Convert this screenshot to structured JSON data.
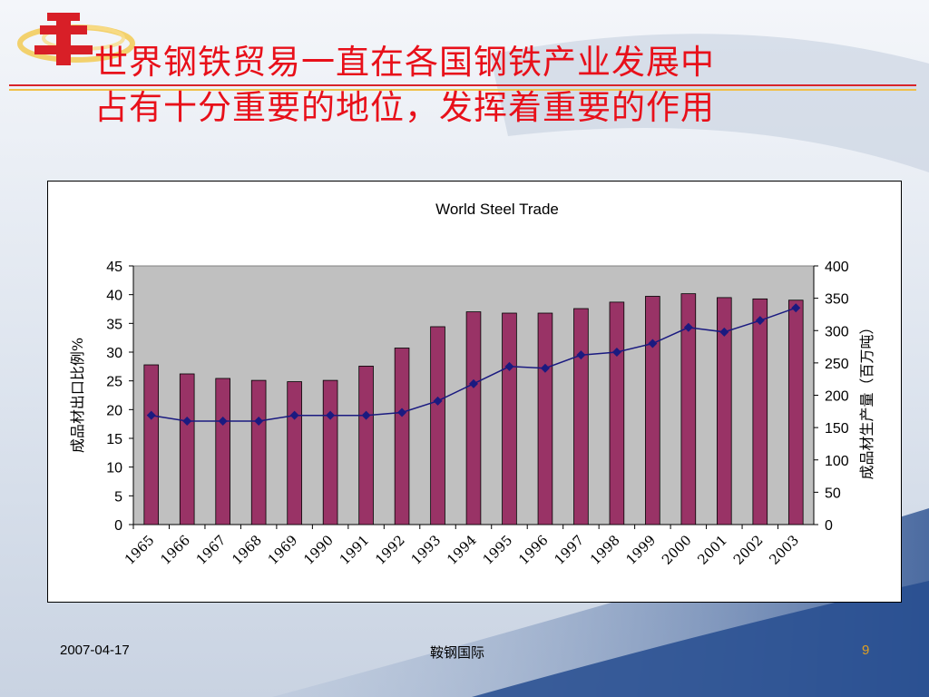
{
  "slide": {
    "title_line1": "世界钢铁贸易一直在各国钢铁产业发展中",
    "title_line2": "占有十分重要的地位，发挥着重要的作用"
  },
  "footer": {
    "date": "2007-04-17",
    "company": "鞍钢国际",
    "page": "9"
  },
  "colors": {
    "title": "#e8101a",
    "bar": "#993366",
    "line": "#1a1a80",
    "plot_bg": "#c0c0c0",
    "page_number": "#e0a020"
  },
  "logo": {
    "icon": "steel-logo-icon"
  },
  "chart_data": {
    "type": "bar",
    "title": "World Steel Trade",
    "categories": [
      "1965",
      "1966",
      "1967",
      "1968",
      "1969",
      "1990",
      "1991",
      "1992",
      "1993",
      "1994",
      "1995",
      "1996",
      "1997",
      "1998",
      "1999",
      "2000",
      "2001",
      "2002",
      "2003"
    ],
    "series": [
      {
        "type": "bar",
        "axis": "right",
        "values": [
          247,
          233,
          226,
          223,
          221,
          223,
          245,
          273,
          306,
          329,
          327,
          327,
          334,
          344,
          353,
          357,
          351,
          349,
          347
        ]
      },
      {
        "type": "line",
        "axis": "left",
        "values": [
          19.0,
          18.0,
          18.0,
          18.0,
          19.0,
          19.0,
          19.0,
          19.5,
          21.5,
          24.5,
          27.5,
          27.2,
          29.5,
          30.0,
          31.5,
          34.3,
          33.5,
          35.5,
          37.7
        ]
      }
    ],
    "ylabel": "成品材出口比例%",
    "ylabel_right": "成品材生产量（百万吨）",
    "xlabel": "",
    "ylim": [
      0,
      45
    ],
    "ylim_right": [
      0,
      400
    ],
    "yticks": [
      "0",
      "5",
      "10",
      "15",
      "20",
      "25",
      "30",
      "35",
      "40",
      "45"
    ],
    "yticks_right": [
      "0",
      "50",
      "100",
      "150",
      "200",
      "250",
      "300",
      "350",
      "400"
    ],
    "grid": false,
    "legend": "none"
  }
}
